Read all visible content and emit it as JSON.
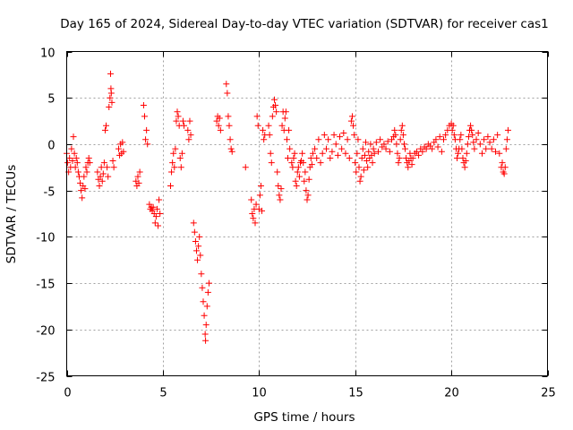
{
  "chart_data": {
    "type": "scatter",
    "title": "Day 165 of 2024, Sidereal Day-to-day VTEC variation (SDTVAR) for receiver cas1",
    "xlabel": "GPS time / hours",
    "ylabel": "SDTVAR / TECUs",
    "xlim": [
      0,
      25
    ],
    "ylim": [
      -25,
      10
    ],
    "xticks": [
      "0",
      "5",
      "10",
      "15",
      "20",
      "25"
    ],
    "yticks": [
      "10",
      "5",
      "0",
      "-5",
      "-10",
      "-15",
      "-20",
      "-25"
    ],
    "grid": true,
    "marker": "+",
    "color": "#ff0000",
    "series": [
      {
        "name": "SDTVAR",
        "points": [
          [
            0.0,
            -1.0
          ],
          [
            0.05,
            -2.0
          ],
          [
            0.1,
            -3.0
          ],
          [
            0.15,
            -1.5
          ],
          [
            0.2,
            -2.5
          ],
          [
            0.25,
            -0.5
          ],
          [
            0.3,
            -1.8
          ],
          [
            0.35,
            0.8
          ],
          [
            0.4,
            -1.0
          ],
          [
            0.45,
            -2.5
          ],
          [
            0.5,
            -1.5
          ],
          [
            0.55,
            -2.0
          ],
          [
            0.6,
            -3.0
          ],
          [
            0.65,
            -3.5
          ],
          [
            0.7,
            -4.2
          ],
          [
            0.75,
            -5.0
          ],
          [
            0.8,
            -5.8
          ],
          [
            0.85,
            -4.5
          ],
          [
            0.9,
            -3.5
          ],
          [
            0.95,
            -4.8
          ],
          [
            1.0,
            -2.5
          ],
          [
            1.05,
            -3.0
          ],
          [
            1.1,
            -2.0
          ],
          [
            1.15,
            -1.5
          ],
          [
            1.2,
            -2.0
          ],
          [
            1.6,
            -3.0
          ],
          [
            1.65,
            -3.8
          ],
          [
            1.7,
            -4.5
          ],
          [
            1.75,
            -3.5
          ],
          [
            1.8,
            -2.5
          ],
          [
            1.85,
            -4.0
          ],
          [
            1.9,
            -3.2
          ],
          [
            1.95,
            -2.0
          ],
          [
            2.0,
            1.5
          ],
          [
            2.05,
            2.0
          ],
          [
            2.1,
            -2.5
          ],
          [
            2.15,
            -3.5
          ],
          [
            2.2,
            4.0
          ],
          [
            2.25,
            5.0
          ],
          [
            2.28,
            7.6
          ],
          [
            2.3,
            6.0
          ],
          [
            2.32,
            5.5
          ],
          [
            2.35,
            4.5
          ],
          [
            2.4,
            -1.8
          ],
          [
            2.45,
            -2.5
          ],
          [
            2.7,
            -0.5
          ],
          [
            2.75,
            -1.2
          ],
          [
            2.8,
            0.0
          ],
          [
            2.85,
            -1.0
          ],
          [
            2.9,
            0.2
          ],
          [
            2.95,
            -0.8
          ],
          [
            3.6,
            -4.0
          ],
          [
            3.65,
            -4.5
          ],
          [
            3.7,
            -3.5
          ],
          [
            3.75,
            -4.2
          ],
          [
            3.8,
            -3.0
          ],
          [
            4.0,
            4.2
          ],
          [
            4.05,
            3.0
          ],
          [
            4.1,
            0.5
          ],
          [
            4.15,
            1.5
          ],
          [
            4.2,
            0.0
          ],
          [
            4.3,
            -6.5
          ],
          [
            4.35,
            -7.0
          ],
          [
            4.4,
            -6.8
          ],
          [
            4.45,
            -7.2
          ],
          [
            4.5,
            -6.8
          ],
          [
            4.55,
            -7.5
          ],
          [
            4.6,
            -8.5
          ],
          [
            4.65,
            -7.8
          ],
          [
            4.7,
            -7.0
          ],
          [
            4.75,
            -8.8
          ],
          [
            4.8,
            -6.0
          ],
          [
            4.85,
            -7.5
          ],
          [
            5.4,
            -4.5
          ],
          [
            5.45,
            -3.0
          ],
          [
            5.5,
            -2.0
          ],
          [
            5.55,
            -1.0
          ],
          [
            5.6,
            -2.5
          ],
          [
            5.65,
            -0.5
          ],
          [
            5.7,
            2.5
          ],
          [
            5.75,
            3.5
          ],
          [
            5.8,
            3.0
          ],
          [
            5.85,
            2.0
          ],
          [
            5.9,
            -1.5
          ],
          [
            5.95,
            -2.5
          ],
          [
            6.0,
            -1.0
          ],
          [
            6.05,
            2.5
          ],
          [
            6.1,
            2.0
          ],
          [
            6.3,
            1.5
          ],
          [
            6.35,
            0.5
          ],
          [
            6.4,
            2.5
          ],
          [
            6.45,
            1.0
          ],
          [
            6.6,
            -8.5
          ],
          [
            6.65,
            -9.5
          ],
          [
            6.7,
            -10.5
          ],
          [
            6.75,
            -11.5
          ],
          [
            6.8,
            -12.5
          ],
          [
            6.85,
            -11.0
          ],
          [
            6.9,
            -10.0
          ],
          [
            6.95,
            -12.0
          ],
          [
            7.0,
            -14.0
          ],
          [
            7.05,
            -15.5
          ],
          [
            7.1,
            -17.0
          ],
          [
            7.15,
            -18.5
          ],
          [
            7.2,
            -20.5
          ],
          [
            7.22,
            -21.2
          ],
          [
            7.25,
            -19.5
          ],
          [
            7.3,
            -17.5
          ],
          [
            7.35,
            -16.0
          ],
          [
            7.4,
            -15.0
          ],
          [
            7.8,
            2.5
          ],
          [
            7.85,
            3.0
          ],
          [
            7.9,
            2.0
          ],
          [
            7.95,
            2.8
          ],
          [
            8.0,
            1.5
          ],
          [
            8.3,
            6.5
          ],
          [
            8.35,
            5.5
          ],
          [
            8.4,
            3.0
          ],
          [
            8.45,
            2.0
          ],
          [
            8.5,
            0.5
          ],
          [
            8.55,
            -0.5
          ],
          [
            8.6,
            -0.8
          ],
          [
            9.3,
            -2.5
          ],
          [
            9.6,
            -6.0
          ],
          [
            9.65,
            -7.5
          ],
          [
            9.7,
            -8.0
          ],
          [
            9.75,
            -7.0
          ],
          [
            9.8,
            -8.5
          ],
          [
            9.85,
            -6.5
          ],
          [
            9.9,
            3.0
          ],
          [
            9.95,
            2.0
          ],
          [
            10.0,
            -7.0
          ],
          [
            10.05,
            -5.5
          ],
          [
            10.1,
            -4.5
          ],
          [
            10.15,
            -7.2
          ],
          [
            10.2,
            1.5
          ],
          [
            10.25,
            0.5
          ],
          [
            10.3,
            1.0
          ],
          [
            10.5,
            2.0
          ],
          [
            10.55,
            1.0
          ],
          [
            10.6,
            -1.0
          ],
          [
            10.65,
            -2.0
          ],
          [
            10.7,
            3.0
          ],
          [
            10.75,
            4.0
          ],
          [
            10.8,
            4.8
          ],
          [
            10.85,
            4.2
          ],
          [
            10.9,
            3.5
          ],
          [
            10.95,
            -3.0
          ],
          [
            11.0,
            -4.5
          ],
          [
            11.05,
            -5.5
          ],
          [
            11.1,
            -6.0
          ],
          [
            11.15,
            -4.8
          ],
          [
            11.2,
            2.0
          ],
          [
            11.25,
            3.5
          ],
          [
            11.3,
            1.5
          ],
          [
            11.35,
            2.8
          ],
          [
            11.4,
            3.5
          ],
          [
            11.45,
            0.5
          ],
          [
            11.5,
            -1.5
          ],
          [
            11.55,
            1.5
          ],
          [
            11.6,
            -0.5
          ],
          [
            11.7,
            -2.0
          ],
          [
            11.75,
            -2.5
          ],
          [
            11.8,
            -1.5
          ],
          [
            11.85,
            -1.0
          ],
          [
            11.9,
            -4.0
          ],
          [
            11.95,
            -4.5
          ],
          [
            12.0,
            -3.0
          ],
          [
            12.05,
            -2.5
          ],
          [
            12.1,
            -3.5
          ],
          [
            12.15,
            -2.0
          ],
          [
            12.2,
            -1.8
          ],
          [
            12.25,
            -1.0
          ],
          [
            12.3,
            -2.0
          ],
          [
            12.35,
            -4.0
          ],
          [
            12.4,
            -3.0
          ],
          [
            12.45,
            -5.0
          ],
          [
            12.5,
            -6.0
          ],
          [
            12.55,
            -5.5
          ],
          [
            12.6,
            -3.8
          ],
          [
            12.65,
            -2.5
          ],
          [
            12.7,
            -1.5
          ],
          [
            12.75,
            -2.2
          ],
          [
            12.8,
            -1.0
          ],
          [
            12.9,
            -0.5
          ],
          [
            13.0,
            -1.5
          ],
          [
            13.1,
            0.5
          ],
          [
            13.2,
            -2.0
          ],
          [
            13.3,
            -1.0
          ],
          [
            13.4,
            1.0
          ],
          [
            13.5,
            -0.5
          ],
          [
            13.6,
            0.5
          ],
          [
            13.7,
            -1.5
          ],
          [
            13.8,
            -0.8
          ],
          [
            13.9,
            1.0
          ],
          [
            14.0,
            0.0
          ],
          [
            14.1,
            -1.2
          ],
          [
            14.2,
            0.8
          ],
          [
            14.3,
            -0.5
          ],
          [
            14.4,
            1.2
          ],
          [
            14.5,
            -1.0
          ],
          [
            14.6,
            0.5
          ],
          [
            14.7,
            -1.5
          ],
          [
            14.8,
            2.5
          ],
          [
            14.85,
            3.0
          ],
          [
            14.9,
            2.0
          ],
          [
            14.95,
            1.0
          ],
          [
            15.0,
            -2.0
          ],
          [
            15.05,
            -3.0
          ],
          [
            15.1,
            -1.0
          ],
          [
            15.15,
            0.5
          ],
          [
            15.2,
            -2.5
          ],
          [
            15.25,
            -4.0
          ],
          [
            15.3,
            -3.5
          ],
          [
            15.35,
            -1.5
          ],
          [
            15.4,
            -0.5
          ],
          [
            15.45,
            -2.8
          ],
          [
            15.5,
            -1.2
          ],
          [
            15.55,
            0.2
          ],
          [
            15.6,
            -1.8
          ],
          [
            15.65,
            -2.5
          ],
          [
            15.7,
            -0.8
          ],
          [
            15.75,
            -1.5
          ],
          [
            15.8,
            0.0
          ],
          [
            15.85,
            -1.2
          ],
          [
            15.9,
            -2.0
          ],
          [
            15.95,
            -0.5
          ],
          [
            16.0,
            -1.0
          ],
          [
            16.1,
            0.2
          ],
          [
            16.2,
            -0.8
          ],
          [
            16.3,
            0.5
          ],
          [
            16.4,
            -0.3
          ],
          [
            16.5,
            0.0
          ],
          [
            16.6,
            -0.5
          ],
          [
            16.7,
            0.3
          ],
          [
            16.8,
            -0.8
          ],
          [
            16.9,
            0.5
          ],
          [
            17.0,
            0.8
          ],
          [
            17.05,
            1.5
          ],
          [
            17.1,
            1.0
          ],
          [
            17.15,
            0.0
          ],
          [
            17.2,
            -1.0
          ],
          [
            17.25,
            -2.0
          ],
          [
            17.3,
            -1.5
          ],
          [
            17.35,
            0.5
          ],
          [
            17.4,
            1.5
          ],
          [
            17.45,
            2.0
          ],
          [
            17.5,
            1.0
          ],
          [
            17.55,
            0.0
          ],
          [
            17.6,
            -0.5
          ],
          [
            17.65,
            -1.5
          ],
          [
            17.7,
            -2.0
          ],
          [
            17.75,
            -2.5
          ],
          [
            17.8,
            -1.8
          ],
          [
            17.85,
            -1.0
          ],
          [
            17.9,
            -1.5
          ],
          [
            17.95,
            -2.2
          ],
          [
            18.0,
            -1.5
          ],
          [
            18.1,
            -1.0
          ],
          [
            18.2,
            -0.8
          ],
          [
            18.3,
            -1.2
          ],
          [
            18.4,
            -0.5
          ],
          [
            18.5,
            -0.8
          ],
          [
            18.6,
            -0.3
          ],
          [
            18.7,
            -0.5
          ],
          [
            18.8,
            0.0
          ],
          [
            18.9,
            -0.2
          ],
          [
            19.0,
            -0.5
          ],
          [
            19.1,
            0.2
          ],
          [
            19.2,
            0.5
          ],
          [
            19.3,
            -0.3
          ],
          [
            19.4,
            0.8
          ],
          [
            19.5,
            -0.8
          ],
          [
            19.6,
            0.5
          ],
          [
            19.7,
            1.0
          ],
          [
            19.8,
            1.5
          ],
          [
            19.9,
            2.0
          ],
          [
            20.0,
            2.2
          ],
          [
            20.05,
            1.5
          ],
          [
            20.1,
            2.0
          ],
          [
            20.15,
            1.0
          ],
          [
            20.2,
            0.5
          ],
          [
            20.25,
            -0.5
          ],
          [
            20.3,
            -1.5
          ],
          [
            20.35,
            -1.0
          ],
          [
            20.4,
            -0.5
          ],
          [
            20.45,
            0.5
          ],
          [
            20.5,
            1.0
          ],
          [
            20.55,
            -0.5
          ],
          [
            20.6,
            -1.5
          ],
          [
            20.65,
            -2.0
          ],
          [
            20.7,
            -2.5
          ],
          [
            20.75,
            -1.8
          ],
          [
            20.8,
            -1.0
          ],
          [
            20.85,
            0.0
          ],
          [
            20.9,
            0.8
          ],
          [
            20.95,
            1.5
          ],
          [
            21.0,
            2.0
          ],
          [
            21.05,
            1.5
          ],
          [
            21.1,
            1.0
          ],
          [
            21.15,
            0.2
          ],
          [
            21.2,
            -0.5
          ],
          [
            21.3,
            0.5
          ],
          [
            21.4,
            1.2
          ],
          [
            21.5,
            0.0
          ],
          [
            21.6,
            -1.0
          ],
          [
            21.7,
            0.5
          ],
          [
            21.8,
            -0.5
          ],
          [
            21.9,
            0.8
          ],
          [
            22.0,
            0.2
          ],
          [
            22.1,
            -0.5
          ],
          [
            22.2,
            0.5
          ],
          [
            22.3,
            -0.8
          ],
          [
            22.4,
            1.0
          ],
          [
            22.5,
            -1.0
          ],
          [
            22.6,
            -2.5
          ],
          [
            22.65,
            -2.0
          ],
          [
            22.7,
            -3.0
          ],
          [
            22.75,
            -3.2
          ],
          [
            22.8,
            -2.5
          ],
          [
            22.85,
            -0.5
          ],
          [
            22.9,
            0.5
          ],
          [
            22.95,
            1.5
          ]
        ]
      }
    ]
  }
}
